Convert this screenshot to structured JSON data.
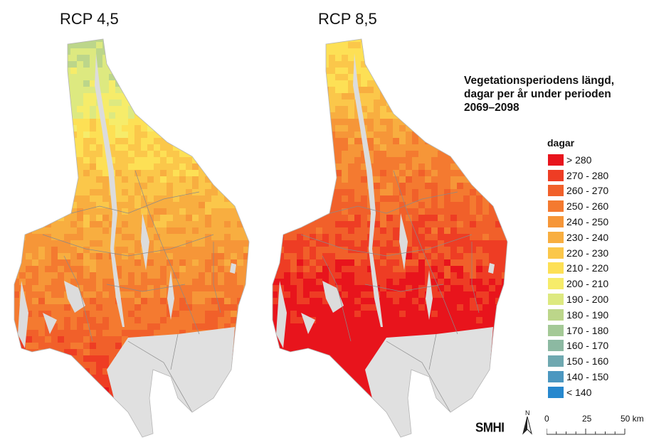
{
  "maps": [
    {
      "title": "RCP 4,5",
      "scenario": "rcp45"
    },
    {
      "title": "RCP 8,5",
      "scenario": "rcp85"
    }
  ],
  "legend": {
    "heading": "Vegetationsperiodens längd, dagar per år under perioden 2069–2098",
    "unit": "dagar",
    "classes": [
      {
        "label": "> 280",
        "color": "#e8141c"
      },
      {
        "label": "270 - 280",
        "color": "#ee3d24"
      },
      {
        "label": "260 - 270",
        "color": "#f1602a"
      },
      {
        "label": "250 - 260",
        "color": "#f47a30"
      },
      {
        "label": "240 - 250",
        "color": "#f69638"
      },
      {
        "label": "230 - 240",
        "color": "#f8ae40"
      },
      {
        "label": "220 - 230",
        "color": "#fbc74a"
      },
      {
        "label": "210 - 220",
        "color": "#fde055"
      },
      {
        "label": "200 - 210",
        "color": "#f6ec6a"
      },
      {
        "label": "190 - 200",
        "color": "#dde980"
      },
      {
        "label": "180 - 190",
        "color": "#bcd68a"
      },
      {
        "label": "170 - 180",
        "color": "#a4c996"
      },
      {
        "label": "160 - 170",
        "color": "#8cb9a2"
      },
      {
        "label": "150 - 160",
        "color": "#6fa8b0"
      },
      {
        "label": "140 - 150",
        "color": "#4c97c0"
      },
      {
        "label": "< 140",
        "color": "#2788ce"
      }
    ]
  },
  "credits": {
    "logo": "SMHI",
    "north_letter": "N"
  },
  "scale": {
    "labels": [
      "0",
      "25",
      "50 km"
    ]
  },
  "colors": {
    "lake": "#dcdcdc",
    "border": "#8a8a8a",
    "outside": "#e0e0e0"
  }
}
